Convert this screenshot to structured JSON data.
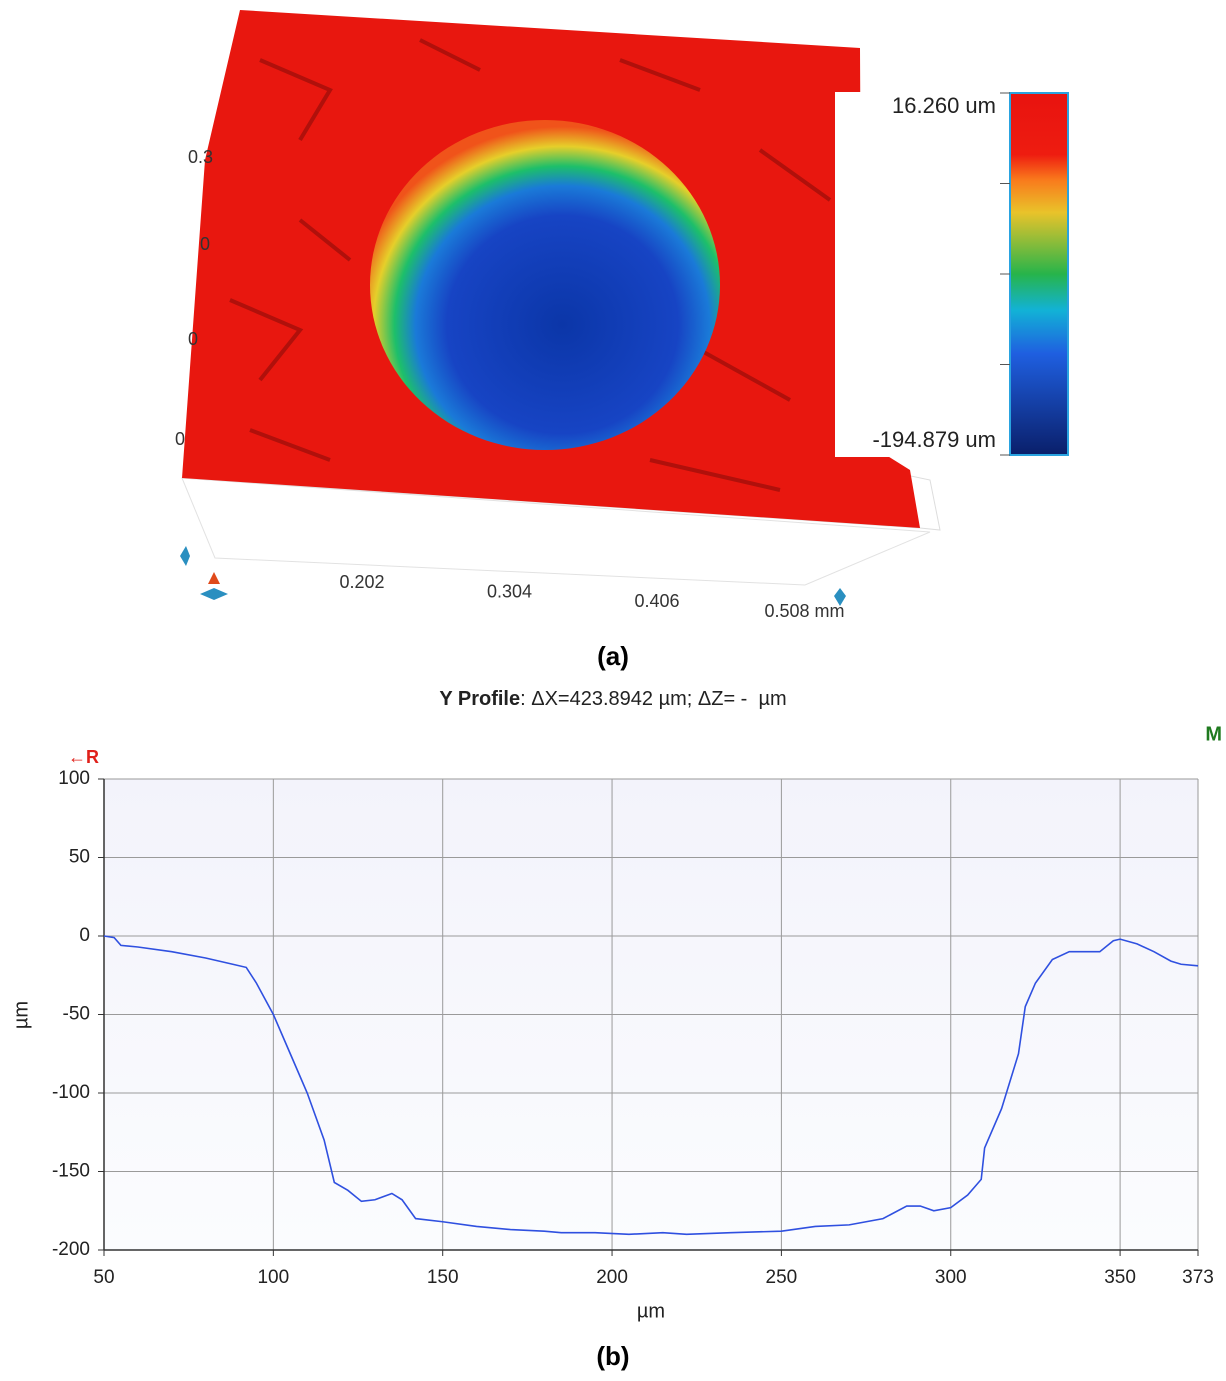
{
  "chart_data": [
    {
      "type": "surface",
      "panel_label": "(a)",
      "xticks": [
        0.202,
        0.304,
        0.406,
        {
          "value": 0.508,
          "label": "0.508 mm"
        }
      ],
      "visible_y_labels": [
        "0.3",
        "0",
        "0",
        "0"
      ],
      "colorbar": [
        {
          "value": 16.26,
          "label": "16.260 um"
        },
        {
          "value": -194.879,
          "label": "-194.879 um"
        }
      ]
    },
    {
      "type": "line",
      "panel_label": "(b)",
      "title": {
        "bold": "Y Profile",
        "text": ": ΔX=423.8942 µm; ΔZ= -  µm"
      },
      "left_marker": "←R",
      "right_marker": "M",
      "xlabel": "µm",
      "ylabel": "µm",
      "xlim": [
        50,
        373
      ],
      "ylim": [
        -200,
        100
      ],
      "xticks": [
        50,
        100,
        150,
        200,
        250,
        300,
        350,
        373
      ],
      "yticks": [
        -200,
        -150,
        -100,
        -50,
        0,
        50,
        100
      ],
      "grid": true,
      "x": [
        50,
        53,
        55,
        60,
        70,
        80,
        88,
        92,
        95,
        100,
        105,
        110,
        115,
        118,
        122,
        126,
        130,
        135,
        138,
        142,
        150,
        160,
        170,
        180,
        185,
        195,
        205,
        215,
        222,
        235,
        250,
        260,
        270,
        280,
        287,
        291,
        295,
        300,
        305,
        309,
        310,
        315,
        320,
        322,
        325,
        330,
        335,
        344,
        348,
        350,
        355,
        360,
        365,
        368,
        373
      ],
      "series": [
        {
          "color": "#2f50e0",
          "values": [
            0,
            -1,
            -6,
            -7,
            -10,
            -14,
            -18,
            -20,
            -30,
            -50,
            -75,
            -100,
            -130,
            -157,
            -162,
            -169,
            -168,
            -164,
            -168,
            -180,
            -182,
            -185,
            -187,
            -188,
            -189,
            -189,
            -190,
            -189,
            -190,
            -189,
            -188,
            -185,
            -184,
            -180,
            -172,
            -172,
            -175,
            -173,
            -165,
            -155,
            -135,
            -110,
            -75,
            -45,
            -30,
            -15,
            -10,
            -10,
            -3,
            -2,
            -5,
            -10,
            -16,
            -18,
            -19
          ]
        }
      ]
    }
  ]
}
